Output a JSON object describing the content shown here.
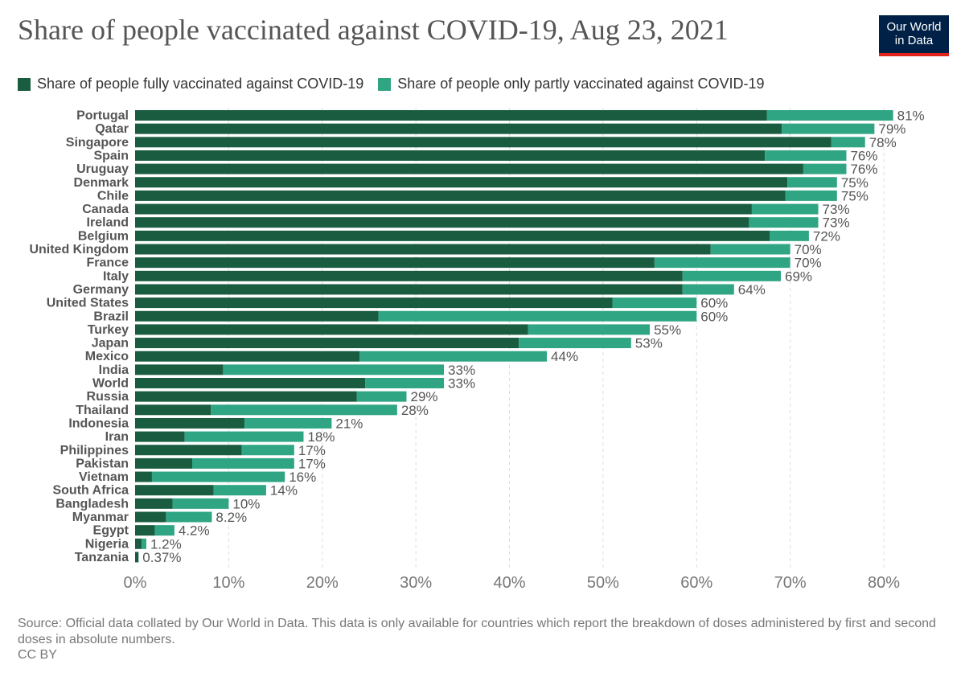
{
  "header": {
    "title": "Share of people vaccinated against COVID-19, Aug 23, 2021",
    "logo_line1": "Our World",
    "logo_line2": "in Data"
  },
  "legend": {
    "full_label": "Share of people fully vaccinated against COVID-19",
    "partial_label": "Share of people only partly vaccinated against COVID-19"
  },
  "colors": {
    "full": "#1a5c40",
    "partial": "#2fa584",
    "grid": "#dddddd",
    "country_text": "#555555",
    "value_text": "#555555",
    "tick_text": "#777777",
    "logo_bg": "#002147",
    "logo_accent": "#e1251b"
  },
  "chart_data": {
    "type": "bar",
    "orientation": "horizontal",
    "stacked": true,
    "xlim": [
      0,
      80
    ],
    "xticks": [
      0,
      10,
      20,
      30,
      40,
      50,
      60,
      70,
      80
    ],
    "xtick_labels": [
      "0%",
      "10%",
      "20%",
      "30%",
      "40%",
      "50%",
      "60%",
      "70%",
      "80%"
    ],
    "categories": [
      "Portugal",
      "Qatar",
      "Singapore",
      "Spain",
      "Uruguay",
      "Denmark",
      "Chile",
      "Canada",
      "Ireland",
      "Belgium",
      "United Kingdom",
      "France",
      "Italy",
      "Germany",
      "United States",
      "Brazil",
      "Turkey",
      "Japan",
      "Mexico",
      "India",
      "World",
      "Russia",
      "Thailand",
      "Indonesia",
      "Iran",
      "Philippines",
      "Pakistan",
      "Vietnam",
      "South Africa",
      "Bangladesh",
      "Myanmar",
      "Egypt",
      "Nigeria",
      "Tanzania"
    ],
    "series": [
      {
        "name": "Share of people fully vaccinated against COVID-19",
        "values": [
          67.5,
          69.1,
          74.4,
          67.3,
          71.4,
          69.7,
          69.5,
          65.9,
          65.6,
          67.8,
          61.5,
          55.5,
          58.5,
          58.5,
          51.0,
          26.0,
          42.0,
          41.0,
          24.0,
          9.4,
          24.6,
          23.7,
          8.1,
          11.7,
          5.3,
          11.4,
          6.1,
          1.8,
          8.4,
          4.0,
          3.3,
          2.1,
          0.7,
          0.37
        ]
      },
      {
        "name": "Share of people only partly vaccinated against COVID-19",
        "values": [
          13.5,
          9.9,
          3.6,
          8.7,
          4.6,
          5.3,
          5.5,
          7.1,
          7.4,
          4.2,
          8.5,
          14.5,
          10.5,
          5.5,
          9.0,
          34.0,
          13.0,
          12.0,
          20.0,
          23.6,
          8.4,
          5.3,
          19.9,
          9.3,
          12.7,
          5.6,
          10.9,
          14.2,
          5.6,
          6.0,
          4.9,
          2.1,
          0.5,
          0.0
        ]
      }
    ],
    "total_labels": [
      "81%",
      "79%",
      "78%",
      "76%",
      "76%",
      "75%",
      "75%",
      "73%",
      "73%",
      "72%",
      "70%",
      "70%",
      "69%",
      "64%",
      "60%",
      "60%",
      "55%",
      "53%",
      "44%",
      "33%",
      "33%",
      "29%",
      "28%",
      "21%",
      "18%",
      "17%",
      "17%",
      "16%",
      "14%",
      "10%",
      "8.2%",
      "4.2%",
      "1.2%",
      "0.37%"
    ]
  },
  "footer": {
    "source": "Source: Official data collated by Our World in Data. This data is only available for countries which report the breakdown of doses administered by first and second doses in absolute numbers.",
    "license": "CC BY"
  }
}
